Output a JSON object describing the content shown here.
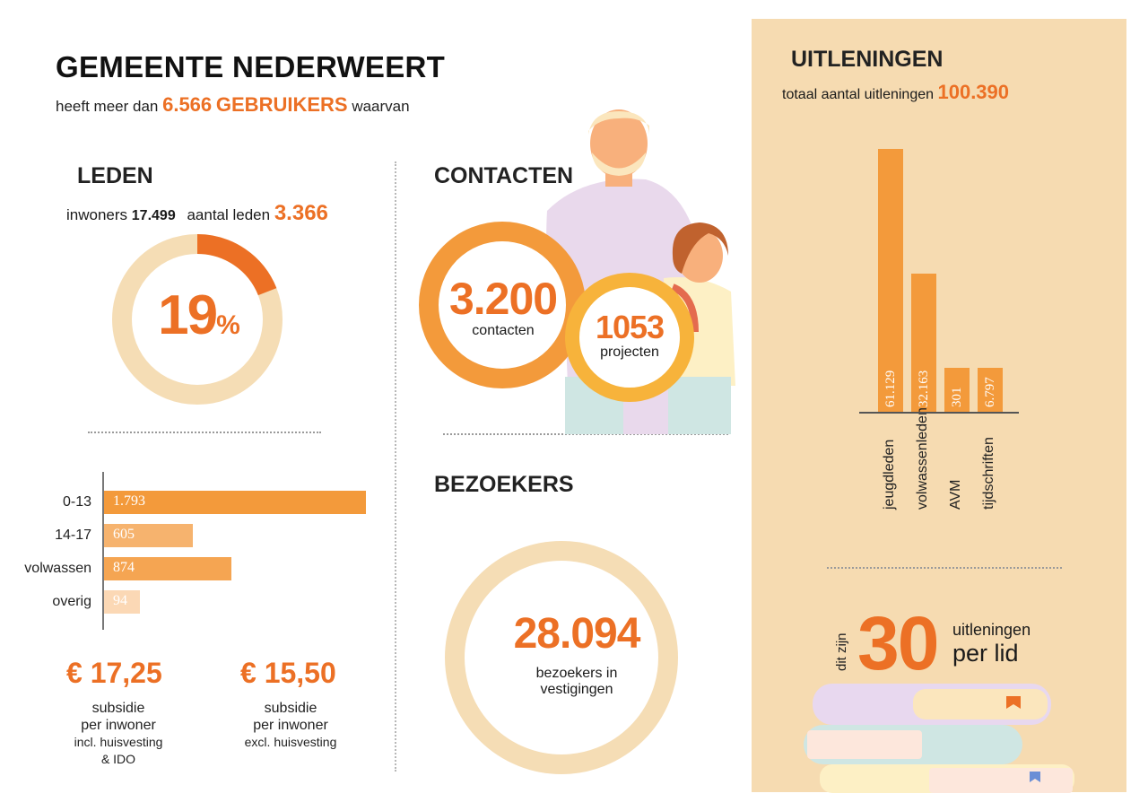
{
  "header": {
    "title": "GEMEENTE NEDERWEERT",
    "subtitle_prefix": "heeft meer dan",
    "users_count": "6.566",
    "users_word": "GEBRUIKERS",
    "subtitle_suffix": "waarvan"
  },
  "leden": {
    "title": "LEDEN",
    "inhabitants_label": "inwoners",
    "inhabitants_value": "17.499",
    "members_label": "aantal leden",
    "members_value": "3.366",
    "percent_number": "19",
    "percent_sign": "%",
    "donut_fraction": 0.19
  },
  "age_bars": {
    "items": [
      {
        "label": "0-13",
        "value_text": "1.793",
        "value": 1793,
        "color": "#f39a3b"
      },
      {
        "label": "14-17",
        "value_text": "605",
        "value": 605,
        "color": "#f6b36e"
      },
      {
        "label": "volwassen",
        "value_text": "874",
        "value": 874,
        "color": "#f5a552"
      },
      {
        "label": "overig",
        "value_text": "94",
        "value": 94,
        "color": "#fbd8b5"
      }
    ]
  },
  "subsidy": {
    "incl": {
      "amount": "€ 17,25",
      "line1": "subsidie",
      "line2": "per inwoner",
      "line3": "incl. huisvesting",
      "line4": "& IDO"
    },
    "excl": {
      "amount": "€ 15,50",
      "line1": "subsidie",
      "line2": "per inwoner",
      "line3": "excl. huisvesting"
    }
  },
  "contacten": {
    "title": "CONTACTEN",
    "contacts_value": "3.200",
    "contacts_label": "contacten",
    "projects_value": "1053",
    "projects_label": "projecten"
  },
  "bezoekers": {
    "title": "BEZOEKERS",
    "value": "28.094",
    "label_line1": "bezoekers in",
    "label_line2": "vestigingen"
  },
  "uitleningen": {
    "title": "UITLENINGEN",
    "total_label": "totaal aantal uitleningen",
    "total_value": "100.390",
    "per_lid_prefix": "dit zijn",
    "per_lid_value": "30",
    "per_lid_word1": "uitleningen",
    "per_lid_word2": "per lid"
  },
  "chart_data": {
    "type": "bar",
    "categories": [
      "jeugdleden",
      "volwassenleden",
      "AVM",
      "tijdschriften"
    ],
    "values": [
      61129,
      32163,
      301,
      6797
    ],
    "value_labels": [
      "61.129",
      "32.163",
      "301",
      "6.797"
    ],
    "title": "",
    "xlabel": "",
    "ylabel": "",
    "color": "#f39a3b"
  },
  "colors": {
    "accent": "#ec7025",
    "bar": "#f39a3b",
    "panel": "#f6dbb1",
    "donut_track": "#f5ddb5",
    "yellow_ring": "#f7b33b"
  }
}
